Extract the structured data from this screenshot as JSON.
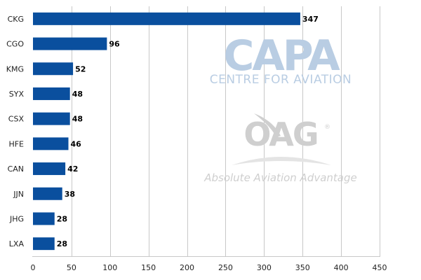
{
  "chart_data": {
    "type": "bar",
    "orientation": "horizontal",
    "categories": [
      "CKG",
      "CGO",
      "KMG",
      "SYX",
      "CSX",
      "HFE",
      "CAN",
      "JJN",
      "JHG",
      "LXA"
    ],
    "values": [
      347,
      96,
      52,
      48,
      48,
      46,
      42,
      38,
      28,
      28
    ],
    "xlim": [
      0,
      450
    ],
    "xticks": [
      0,
      50,
      100,
      150,
      200,
      250,
      300,
      350,
      400,
      450
    ],
    "grid": "vertical",
    "bar_color": "#0a4f9e",
    "title": "",
    "xlabel": "",
    "ylabel": ""
  },
  "watermark": {
    "capa_logo": "CAPA",
    "capa_subtitle": "CENTRE FOR AVIATION",
    "oag_logo": "OAG",
    "oag_registered": "®",
    "oag_tagline": "Absolute Aviation Advantage",
    "capa_color": "#b9cde3",
    "oag_color": "#cfcfcf"
  }
}
